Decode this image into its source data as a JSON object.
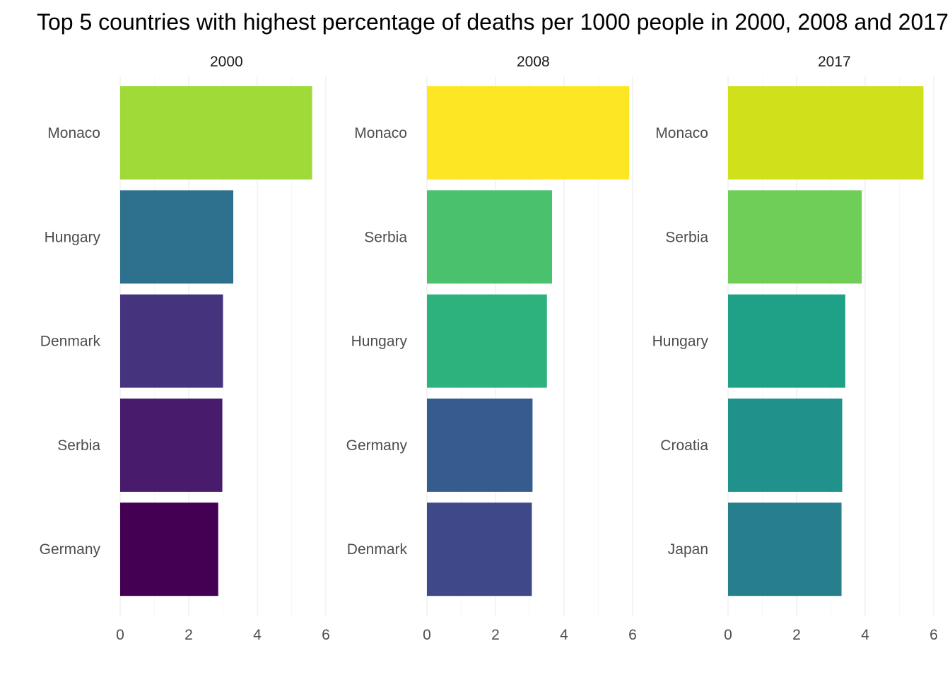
{
  "chart_data": {
    "type": "bar",
    "orientation": "horizontal",
    "title": "Top 5 countries with highest percentage of deaths per 1000 people in 2000, 2008 and 2017",
    "xlim": [
      0,
      6.2
    ],
    "x_ticks": [
      "0",
      "2",
      "4",
      "6"
    ],
    "x_tick_values": [
      0,
      2,
      4,
      6
    ],
    "panels": [
      {
        "facet": "2000",
        "categories": [
          "Monaco",
          "Hungary",
          "Denmark",
          "Serbia",
          "Germany"
        ],
        "values": [
          5.6,
          3.3,
          3.0,
          2.98,
          2.86
        ],
        "colors": [
          "#A0DA39",
          "#2D718E",
          "#46337E",
          "#481B6D",
          "#440154"
        ]
      },
      {
        "facet": "2008",
        "categories": [
          "Monaco",
          "Serbia",
          "Hungary",
          "Germany",
          "Denmark"
        ],
        "values": [
          5.9,
          3.65,
          3.5,
          3.08,
          3.06
        ],
        "colors": [
          "#FDE725",
          "#4AC16D",
          "#2DB27D",
          "#365C8D",
          "#3F4889"
        ]
      },
      {
        "facet": "2017",
        "categories": [
          "Monaco",
          "Serbia",
          "Hungary",
          "Croatia",
          "Japan"
        ],
        "values": [
          5.7,
          3.9,
          3.42,
          3.33,
          3.31
        ],
        "colors": [
          "#D0E11C",
          "#6ECE58",
          "#1FA187",
          "#21918C",
          "#277F8E"
        ]
      }
    ]
  }
}
